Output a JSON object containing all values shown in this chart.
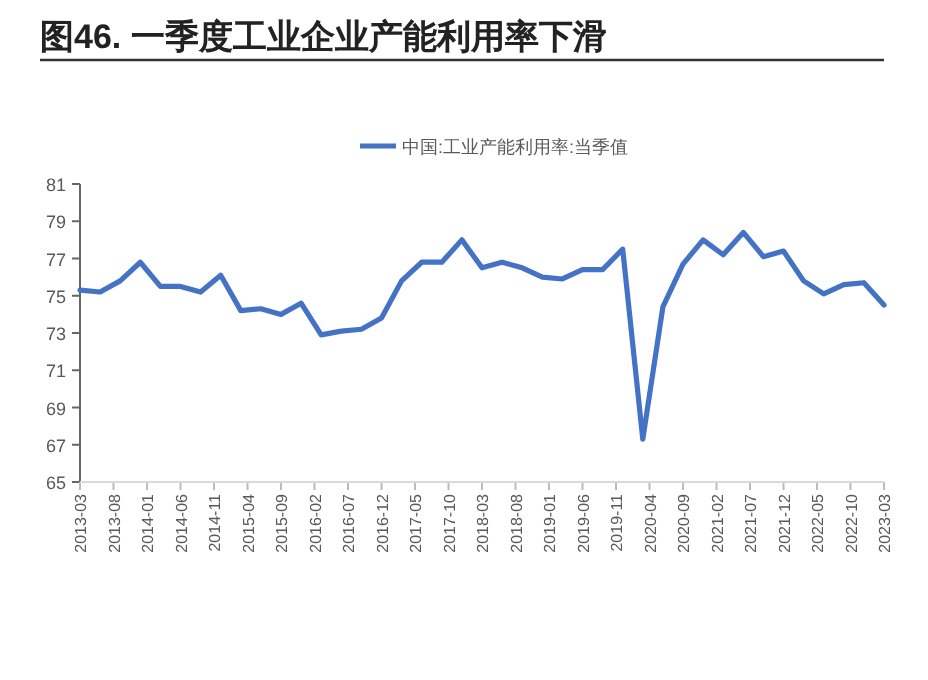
{
  "chart_data": {
    "type": "line",
    "title": "图46. 一季度工业企业产能利用率下滑",
    "x": [
      "2013-03",
      "2013-06",
      "2013-09",
      "2013-12",
      "2014-03",
      "2014-06",
      "2014-09",
      "2014-12",
      "2015-03",
      "2015-06",
      "2015-09",
      "2015-12",
      "2016-03",
      "2016-06",
      "2016-09",
      "2016-12",
      "2017-03",
      "2017-06",
      "2017-09",
      "2017-12",
      "2018-03",
      "2018-06",
      "2018-09",
      "2018-12",
      "2019-03",
      "2019-06",
      "2019-09",
      "2019-12",
      "2020-03",
      "2020-06",
      "2020-09",
      "2020-12",
      "2021-03",
      "2021-06",
      "2021-09",
      "2021-12",
      "2022-03",
      "2022-06",
      "2022-09",
      "2022-12",
      "2023-03"
    ],
    "series": [
      {
        "name": "中国:工业产能利用率:当季值",
        "color": "#4472c4",
        "values": [
          75.3,
          75.2,
          75.8,
          76.8,
          75.5,
          75.5,
          75.2,
          76.1,
          74.2,
          74.3,
          74.0,
          74.6,
          72.9,
          73.1,
          73.2,
          73.8,
          75.8,
          76.8,
          76.8,
          78.0,
          76.5,
          76.8,
          76.5,
          76.0,
          75.9,
          76.4,
          76.4,
          77.5,
          67.3,
          74.4,
          76.7,
          78.0,
          77.2,
          78.4,
          77.1,
          77.4,
          75.8,
          75.1,
          75.6,
          75.7,
          74.5
        ]
      }
    ],
    "xlim": [
      "2013-03",
      "2023-03"
    ],
    "xticks": [
      "2013-03",
      "2013-08",
      "2014-01",
      "2014-06",
      "2014-11",
      "2015-04",
      "2015-09",
      "2016-02",
      "2016-07",
      "2016-12",
      "2017-05",
      "2017-10",
      "2018-03",
      "2018-08",
      "2019-01",
      "2019-06",
      "2019-11",
      "2020-04",
      "2020-09",
      "2021-02",
      "2021-07",
      "2021-12",
      "2022-05",
      "2022-10",
      "2023-03"
    ],
    "ylim": [
      65,
      81
    ],
    "yticks": [
      65,
      67,
      69,
      71,
      73,
      75,
      77,
      79,
      81
    ],
    "grid": false,
    "legend": "top",
    "marker": "none",
    "line_style": "solid"
  }
}
